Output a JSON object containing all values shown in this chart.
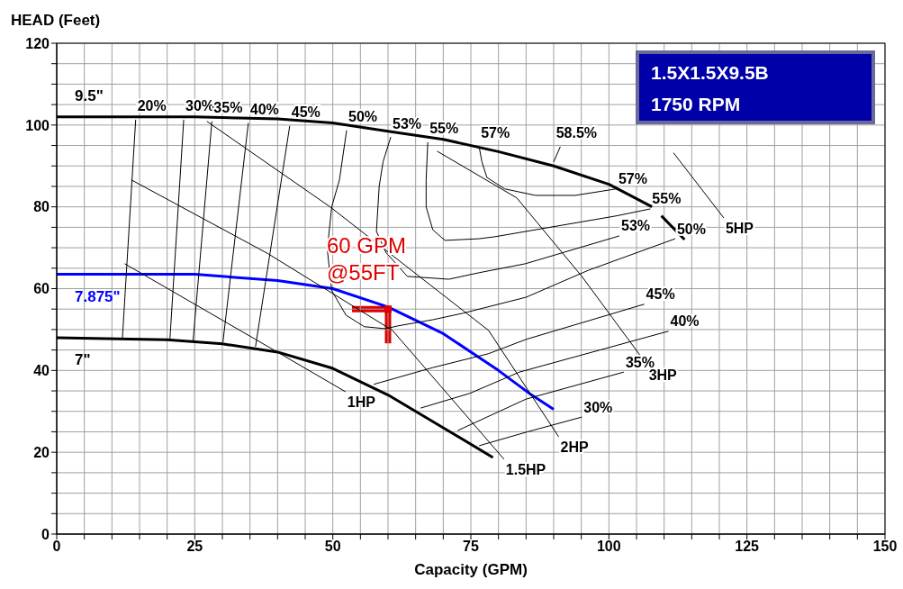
{
  "chart_data": {
    "type": "line",
    "title": "1.5X1.5X9.5B",
    "subtitle": "1750 RPM",
    "xlabel": "Capacity (GPM)",
    "ylabel": "HEAD (Feet)",
    "xlim": [
      0,
      150
    ],
    "ylim": [
      0,
      120
    ],
    "xticks": [
      0,
      {
        "value": 5,
        "label": null
      },
      {
        "value": 10,
        "label": null
      },
      {
        "value": 15,
        "label": null
      },
      {
        "value": 20,
        "label": null
      },
      25,
      {
        "value": 30,
        "label": null
      },
      {
        "value": 35,
        "label": null
      },
      {
        "value": 40,
        "label": null
      },
      {
        "value": 45,
        "label": null
      },
      50,
      {
        "value": 55,
        "label": null
      },
      {
        "value": 60,
        "label": null
      },
      {
        "value": 65,
        "label": null
      },
      {
        "value": 70,
        "label": null
      },
      75,
      {
        "value": 80,
        "label": null
      },
      {
        "value": 85,
        "label": null
      },
      {
        "value": 90,
        "label": null
      },
      {
        "value": 95,
        "label": null
      },
      100,
      {
        "value": 105,
        "label": null
      },
      {
        "value": 110,
        "label": null
      },
      {
        "value": 115,
        "label": null
      },
      {
        "value": 120,
        "label": null
      },
      125,
      {
        "value": 130,
        "label": null
      },
      {
        "value": 135,
        "label": null
      },
      {
        "value": 140,
        "label": null
      },
      {
        "value": 145,
        "label": null
      },
      150
    ],
    "yticks": [
      0,
      {
        "value": 5,
        "label": null
      },
      {
        "value": 10,
        "label": null
      },
      {
        "value": 15,
        "label": null
      },
      20,
      {
        "value": 25,
        "label": null
      },
      {
        "value": 30,
        "label": null
      },
      {
        "value": 35,
        "label": null
      },
      40,
      {
        "value": 45,
        "label": null
      },
      {
        "value": 50,
        "label": null
      },
      {
        "value": 55,
        "label": null
      },
      60,
      {
        "value": 65,
        "label": null
      },
      {
        "value": 70,
        "label": null
      },
      {
        "value": 75,
        "label": null
      },
      80,
      {
        "value": 85,
        "label": null
      },
      {
        "value": 90,
        "label": null
      },
      {
        "value": 95,
        "label": null
      },
      100,
      {
        "value": 105,
        "label": null
      },
      {
        "value": 110,
        "label": null
      },
      {
        "value": 115,
        "label": null
      },
      120
    ],
    "grid": true,
    "legend": false,
    "series": [
      {
        "name": "9.5\"",
        "color": "#000000",
        "x": [
          0,
          25,
          40,
          50,
          60,
          70,
          80,
          90,
          100,
          105,
          107.8,
          108.6,
          109.5,
          113.7
        ],
        "values": [
          102,
          102,
          101.5,
          100.5,
          98.5,
          96.5,
          93.5,
          90,
          85.5,
          82,
          80,
          null,
          77.8,
          72
        ]
      },
      {
        "name": "7.875\"",
        "color": "#0000ff",
        "x": [
          0,
          25,
          40,
          50,
          60,
          70,
          80,
          86,
          90
        ],
        "values": [
          63.5,
          63.5,
          62,
          60,
          55.5,
          49,
          40,
          34,
          30.5
        ]
      },
      {
        "name": "7\"",
        "color": "#000000",
        "x": [
          0,
          20,
          30,
          40,
          50,
          60,
          70,
          79
        ],
        "values": [
          48,
          47.5,
          46.5,
          44.5,
          40.5,
          34,
          26,
          18.7
        ]
      },
      {
        "name": "20%",
        "color": "#000000",
        "x": [
          14.3,
          11.9
        ],
        "values": [
          101.3,
          48
        ]
      },
      {
        "name": "30%",
        "color": "#000000",
        "x": [
          23,
          20.5
        ],
        "values": [
          101.3,
          47.6
        ]
      },
      {
        "name": "35%",
        "color": "#000000",
        "x": [
          28.1,
          24.7
        ],
        "values": [
          100.9,
          47.3
        ]
      },
      {
        "name": "40%",
        "color": "#000000",
        "x": [
          34.7,
          30.1
        ],
        "values": [
          100.5,
          46.9
        ]
      },
      {
        "name": "45%",
        "color": "#000000",
        "x": [
          42.2,
          36
        ],
        "values": [
          99.8,
          45.8
        ]
      },
      {
        "name": "50%",
        "color": "#000000",
        "x": [
          52.5,
          51.2,
          49.8,
          49,
          49.8,
          52.4,
          55.7,
          59.6,
          61.8,
          68.1,
          73.6,
          85,
          96.3,
          112
        ],
        "values": [
          98.7,
          86.6,
          80,
          69.6,
          59.5,
          53.5,
          50.7,
          50.2,
          50.9,
          52.4,
          54,
          57.9,
          64.5,
          72.2
        ]
      },
      {
        "name": "53%",
        "color": "#000000",
        "x": [
          60.5,
          59.1,
          58.4,
          57.9,
          59.6,
          63.5,
          71,
          76.5,
          84.9,
          101.9
        ],
        "values": [
          97.1,
          91,
          85,
          74,
          68.9,
          63,
          62.3,
          63.9,
          66.1,
          72.9
        ]
      },
      {
        "name": "55%",
        "color": "#000000",
        "x": [
          67.2,
          66.9,
          66.9,
          68.1,
          70.3,
          76.5,
          79.4,
          101.4,
          107.5
        ],
        "values": [
          95.8,
          86.6,
          80,
          74.4,
          71.8,
          72.2,
          72.7,
          77.8,
          79.5
        ]
      },
      {
        "name": "57%",
        "color": "#000000",
        "x": [
          76.5,
          77,
          77.9,
          81.1,
          86.7,
          93.9,
          101.4
        ],
        "values": [
          94.7,
          91,
          87.2,
          84.4,
          82.8,
          82.8,
          84.4
        ]
      },
      {
        "name": "58.5%",
        "color": "#000000",
        "x": [
          91.2,
          90
        ],
        "values": [
          94.7,
          91
        ]
      },
      {
        "name": "45%",
        "color": "#000000",
        "x": [
          57.4,
          68.1,
          78.2,
          85,
          106.4
        ],
        "values": [
          36.6,
          40.7,
          44.1,
          47.6,
          56.2
        ]
      },
      {
        "name": "40%",
        "color": "#000000",
        "x": [
          65.9,
          74.8,
          83.8,
          110.8
        ],
        "values": [
          30.8,
          34.4,
          39.6,
          49.6
        ]
      },
      {
        "name": "35%",
        "color": "#000000",
        "x": [
          72.6,
          85,
          102.7
        ],
        "values": [
          25.3,
          33,
          39.6
        ]
      },
      {
        "name": "30%",
        "color": "#000000",
        "x": [
          76.5,
          85,
          95.1
        ],
        "values": [
          21.6,
          24.9,
          28.6
        ]
      },
      {
        "name": "1HP",
        "color": "#000000",
        "x": [
          12.3,
          36,
          52.3
        ],
        "values": [
          66.1,
          47.6,
          34.8
        ]
      },
      {
        "name": "1.5HP",
        "color": "#000000",
        "x": [
          13.5,
          38.2,
          60.8,
          81
        ],
        "values": [
          86.6,
          68.6,
          49.8,
          18.3
        ]
      },
      {
        "name": "2HP",
        "color": "#000000",
        "x": [
          27.2,
          49.5,
          78.2,
          90.9
        ],
        "values": [
          100.9,
          80,
          49.8,
          23.8
        ]
      },
      {
        "name": "3HP",
        "color": "#000000",
        "x": [
          68.9,
          83.3,
          95.1,
          106.9
        ],
        "values": [
          93.6,
          82.2,
          63,
          41.4
        ]
      },
      {
        "name": "5HP",
        "color": "#000000",
        "x": [
          111.7,
          120.8
        ],
        "values": [
          93.2,
          77.3
        ]
      },
      {
        "type": "scatter",
        "name": "60 GPM\n@55FT",
        "color": "#e00000",
        "marker": "square",
        "x": [
          60
        ],
        "values": [
          55
        ]
      }
    ]
  }
}
